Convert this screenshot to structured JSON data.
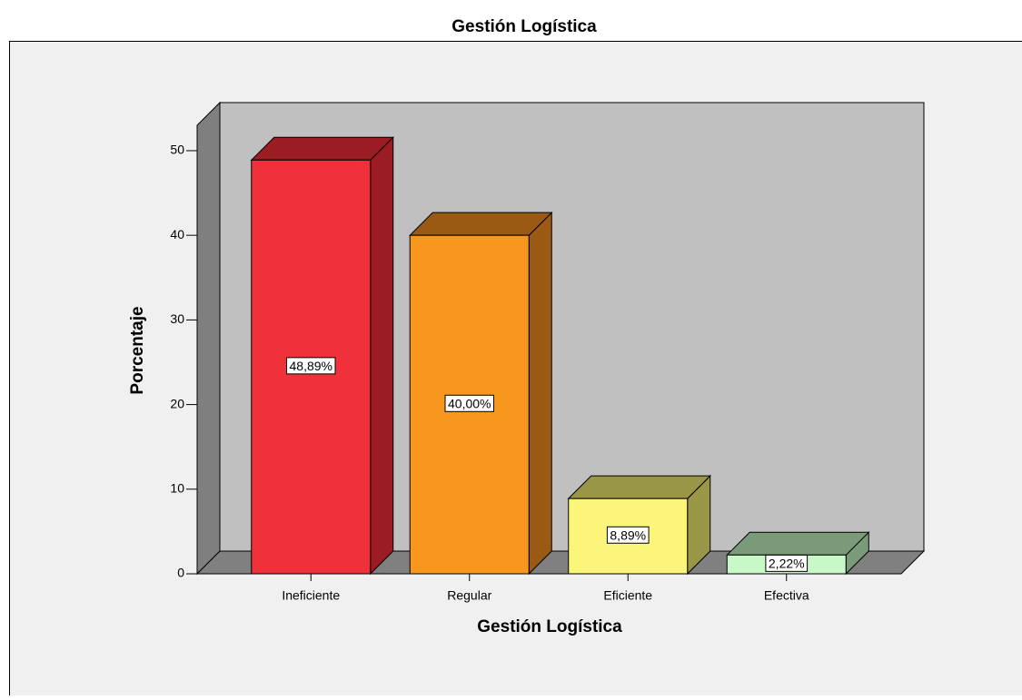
{
  "chart_data": {
    "type": "bar3d",
    "title": "Gestión Logística",
    "x_label": "Gestión Logística",
    "y_label": "Porcentaje",
    "categories": [
      "Ineficiente",
      "Regular",
      "Eficiente",
      "Efectiva"
    ],
    "values": [
      48.89,
      40.0,
      8.89,
      2.22
    ],
    "value_labels": [
      "48,89%",
      "40,00%",
      "8,89%",
      "2,22%"
    ],
    "colors": [
      "#f0313a",
      "#f7971e",
      "#fbf67a",
      "#c8f7c8"
    ],
    "side_colors": [
      "#9b1c22",
      "#9a5a14",
      "#9a9648",
      "#7a9a7a"
    ],
    "ylim": [
      0,
      53
    ],
    "yticks": [
      0,
      10,
      20,
      30,
      40,
      50
    ]
  }
}
